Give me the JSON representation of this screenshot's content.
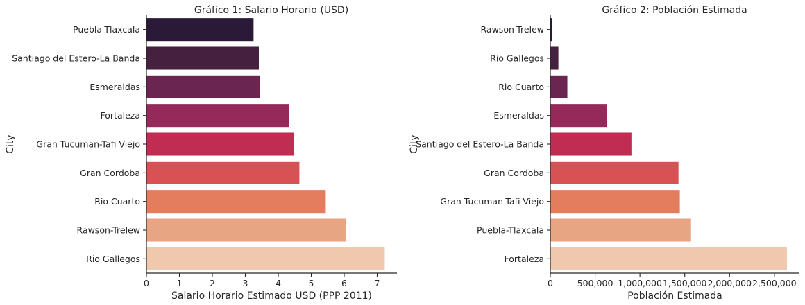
{
  "chart_data": [
    {
      "type": "bar",
      "orientation": "horizontal",
      "title": "Gráfico 1: Salario Horario (USD)",
      "xlabel": "Salario Horario Estimado USD (PPP 2011)",
      "ylabel": "City",
      "xlim": [
        0,
        7.6
      ],
      "xticks": [
        0,
        1,
        2,
        3,
        4,
        5,
        6,
        7
      ],
      "xtick_labels": [
        "0",
        "1",
        "2",
        "3",
        "4",
        "5",
        "6",
        "7"
      ],
      "grid": false,
      "categories": [
        "Puebla-Tlaxcala",
        "Santiago del Estero-La Banda",
        "Esmeraldas",
        "Fortaleza",
        "Gran Tucuman-Tafi Viejo",
        "Gran Cordoba",
        "Rio Cuarto",
        "Rawson-Trelew",
        "Rio Gallegos"
      ],
      "values": [
        3.25,
        3.41,
        3.45,
        4.32,
        4.47,
        4.64,
        5.44,
        6.05,
        7.23
      ],
      "colors": [
        "#2a1a37",
        "#45213f",
        "#6a2650",
        "#952a5a",
        "#c02c52",
        "#d85154",
        "#e47d5d",
        "#e8a583",
        "#f0c8ae"
      ]
    },
    {
      "type": "bar",
      "orientation": "horizontal",
      "title": "Gráfico 2: Población Estimada",
      "xlabel": "Población Estimada",
      "ylabel": "City",
      "xlim": [
        0,
        2780000
      ],
      "xticks": [
        0,
        500000,
        1000000,
        1500000,
        2000000,
        2500000
      ],
      "xtick_labels": [
        "0",
        "500,000",
        "1,000,000",
        "1,500,000",
        "2,000,000",
        "2,500,000"
      ],
      "grid": false,
      "categories": [
        "Rawson-Trelew",
        "Rio Gallegos",
        "Rio Cuarto",
        "Esmeraldas",
        "Santiago del Estero-La Banda",
        "Gran Cordoba",
        "Gran Tucuman-Tafi Viejo",
        "Puebla-Tlaxcala",
        "Fortaleza"
      ],
      "values": [
        20000,
        90000,
        190000,
        630000,
        905000,
        1430000,
        1445000,
        1570000,
        2640000
      ],
      "colors": [
        "#2a1a37",
        "#45213f",
        "#6a2650",
        "#952a5a",
        "#c02c52",
        "#d85154",
        "#e47d5d",
        "#e8a583",
        "#f0c8ae"
      ]
    }
  ]
}
